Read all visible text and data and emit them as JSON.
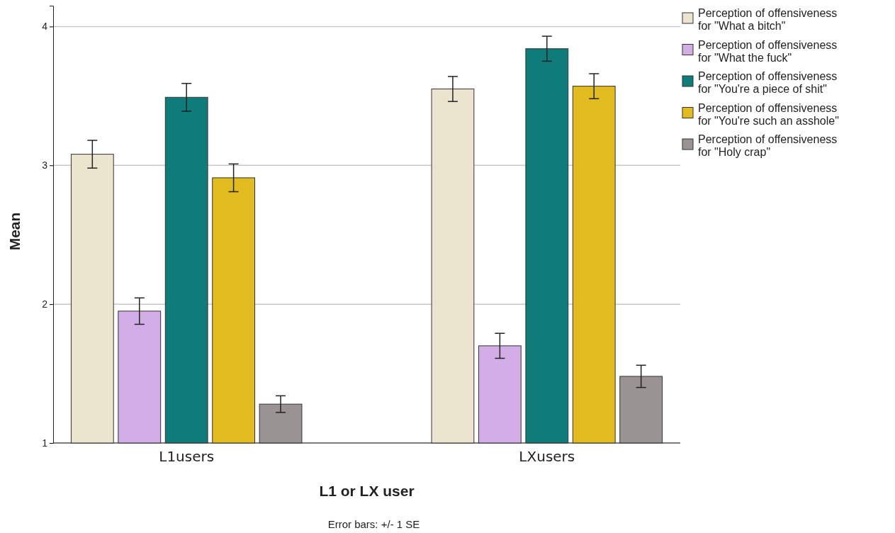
{
  "chart_data": {
    "type": "bar",
    "xlabel": "L1 or LX user",
    "ylabel": "Mean",
    "categories": [
      "L1users",
      "LXusers"
    ],
    "series": [
      {
        "name": "Perception of offensiveness for \"What a bitch\"",
        "color": "#ebe4cf",
        "values": [
          3.08,
          3.55
        ],
        "errors": [
          0.1,
          0.09
        ]
      },
      {
        "name": "Perception of offensiveness for \"What the fuck\"",
        "color": "#d3aee6",
        "values": [
          1.95,
          1.7
        ],
        "errors": [
          0.095,
          0.09
        ]
      },
      {
        "name": "Perception of offensiveness for \"You're a piece of shit\"",
        "color": "#0f7b7a",
        "values": [
          3.49,
          3.84
        ],
        "errors": [
          0.1,
          0.09
        ]
      },
      {
        "name": "Perception of offensiveness for \"You're such an asshole\"",
        "color": "#e1bb1f",
        "values": [
          2.91,
          3.57
        ],
        "errors": [
          0.1,
          0.09
        ]
      },
      {
        "name": "Perception of offensiveness for \"Holy crap\"",
        "color": "#999393",
        "values": [
          1.28,
          1.48
        ],
        "errors": [
          0.06,
          0.08
        ]
      }
    ],
    "ylim": [
      1,
      4.15
    ],
    "yticks": [
      1,
      2,
      3,
      4
    ],
    "grid": "y",
    "legend": "top right",
    "annotations": [
      "Error bars: +/- 1 SE"
    ]
  }
}
